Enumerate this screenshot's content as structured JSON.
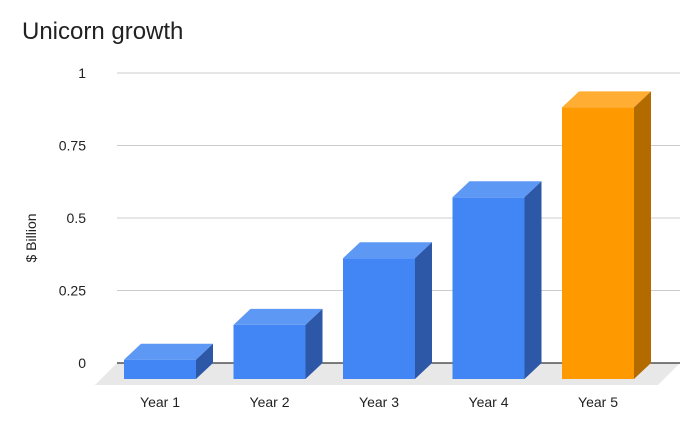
{
  "chart_data": {
    "type": "bar",
    "title": "Unicorn growth",
    "xlabel": "",
    "ylabel": "$ Billion",
    "categories": [
      "Year 1",
      "Year 2",
      "Year 3",
      "Year 4",
      "Year 5"
    ],
    "values": [
      0.07,
      0.19,
      0.42,
      0.63,
      0.94
    ],
    "ylim": [
      0,
      1
    ],
    "yticks": [
      0,
      0.25,
      0.5,
      0.75,
      1
    ],
    "ytick_labels": [
      "0",
      "0.25",
      "0.5",
      "0.75",
      "1"
    ],
    "grid": true,
    "style": "3d",
    "colors": {
      "default": {
        "front": "#4285f4",
        "top": "#5e98f5",
        "side": "#2d57a7"
      },
      "highlight": {
        "front": "#ff9900",
        "top": "#ffad33",
        "side": "#b36b00"
      },
      "highlight_index": 4,
      "floor": "#e8e8e8",
      "grid": "#cccccc"
    }
  }
}
